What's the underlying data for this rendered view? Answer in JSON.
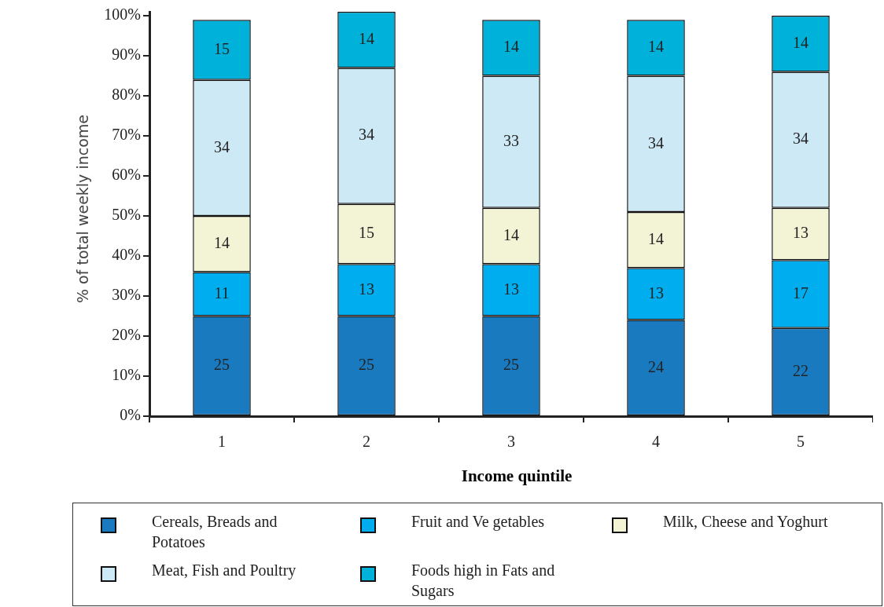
{
  "chart_data": {
    "type": "bar",
    "stacked": true,
    "data_labels": true,
    "grid": false,
    "legend": "bottom",
    "xlabel": "Income quintile",
    "ylabel": "% of total weekly income",
    "categories": [
      "1",
      "2",
      "3",
      "4",
      "5"
    ],
    "ylim": [
      0,
      101
    ],
    "yticks": [
      {
        "value": 0,
        "label": "0%"
      },
      {
        "value": 10,
        "label": "10%"
      },
      {
        "value": 20,
        "label": "20%"
      },
      {
        "value": 30,
        "label": "30%"
      },
      {
        "value": 40,
        "label": "40%"
      },
      {
        "value": 50,
        "label": "50%"
      },
      {
        "value": 60,
        "label": "60%"
      },
      {
        "value": 70,
        "label": "70%"
      },
      {
        "value": 80,
        "label": "80%"
      },
      {
        "value": 90,
        "label": "90%"
      },
      {
        "value": 100,
        "label": "100%"
      }
    ],
    "series": [
      {
        "name": "Cereals, Breads and Potatoes",
        "color": "#1a7abf",
        "values": [
          25,
          25,
          25,
          24,
          22
        ]
      },
      {
        "name": "Fruit and Ve getables",
        "color": "#00aeef",
        "values": [
          11,
          13,
          13,
          13,
          17
        ]
      },
      {
        "name": "Milk, Cheese and Yoghurt",
        "color": "#f3f3d6",
        "values": [
          14,
          15,
          14,
          14,
          13
        ]
      },
      {
        "name": "Meat, Fish and Poultry",
        "color": "#cde9f5",
        "values": [
          34,
          34,
          33,
          34,
          34
        ]
      },
      {
        "name": "Foods high in Fats and Sugars",
        "color": "#00b2d9",
        "values": [
          15,
          14,
          14,
          14,
          14
        ]
      }
    ]
  }
}
